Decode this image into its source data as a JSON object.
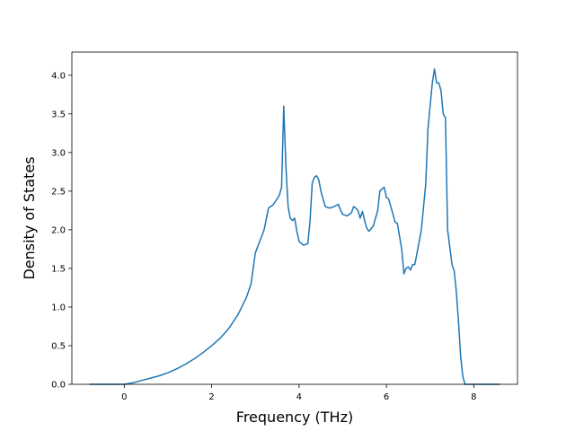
{
  "chart_data": {
    "type": "line",
    "title": "",
    "xlabel": "Frequency (THz)",
    "ylabel": "Density of States",
    "xlim": [
      -1.2,
      9.0
    ],
    "ylim": [
      0,
      4.3
    ],
    "xticks": [
      0,
      2,
      4,
      6,
      8
    ],
    "yticks": [
      0.0,
      0.5,
      1.0,
      1.5,
      2.0,
      2.5,
      3.0,
      3.5,
      4.0
    ],
    "xtick_labels": [
      "0",
      "2",
      "4",
      "6",
      "8"
    ],
    "ytick_labels": [
      "0.0",
      "0.5",
      "1.0",
      "1.5",
      "2.0",
      "2.5",
      "3.0",
      "3.5",
      "4.0"
    ],
    "grid": false,
    "legend": "none",
    "line_color": "#1f77b4",
    "series": [
      {
        "x": [
          -0.8,
          -0.4,
          0.0,
          0.2,
          0.4,
          0.6,
          0.8,
          1.0,
          1.2,
          1.4,
          1.6,
          1.8,
          2.0,
          2.2,
          2.4,
          2.6,
          2.8,
          2.9,
          3.0,
          3.2,
          3.3,
          3.4,
          3.5,
          3.55,
          3.6,
          3.65,
          3.7,
          3.75,
          3.8,
          3.85,
          3.9,
          3.95,
          4.0,
          4.1,
          4.2,
          4.25,
          4.3,
          4.35,
          4.4,
          4.45,
          4.5,
          4.6,
          4.7,
          4.8,
          4.9,
          4.95,
          5.0,
          5.1,
          5.2,
          5.25,
          5.3,
          5.35,
          5.4,
          5.45,
          5.5,
          5.55,
          5.6,
          5.7,
          5.8,
          5.85,
          5.9,
          5.95,
          6.0,
          6.05,
          6.1,
          6.2,
          6.25,
          6.35,
          6.4,
          6.45,
          6.5,
          6.55,
          6.6,
          6.65,
          6.7,
          6.8,
          6.9,
          6.95,
          7.0,
          7.05,
          7.1,
          7.15,
          7.2,
          7.25,
          7.3,
          7.35,
          7.4,
          7.5,
          7.55,
          7.6,
          7.65,
          7.7,
          7.75,
          7.8,
          8.0,
          8.3,
          8.6
        ],
        "values": [
          0.0,
          0.0,
          0.0,
          0.02,
          0.05,
          0.08,
          0.11,
          0.15,
          0.2,
          0.26,
          0.33,
          0.41,
          0.5,
          0.6,
          0.73,
          0.9,
          1.13,
          1.3,
          1.7,
          2.0,
          2.28,
          2.32,
          2.4,
          2.45,
          2.55,
          3.6,
          2.8,
          2.3,
          2.15,
          2.12,
          2.15,
          1.98,
          1.85,
          1.8,
          1.82,
          2.1,
          2.6,
          2.68,
          2.7,
          2.65,
          2.5,
          2.3,
          2.28,
          2.3,
          2.33,
          2.25,
          2.2,
          2.18,
          2.22,
          2.3,
          2.28,
          2.25,
          2.15,
          2.24,
          2.12,
          2.02,
          1.98,
          2.05,
          2.25,
          2.5,
          2.53,
          2.55,
          2.42,
          2.4,
          2.3,
          2.1,
          2.08,
          1.75,
          1.43,
          1.5,
          1.52,
          1.48,
          1.55,
          1.55,
          1.7,
          2.0,
          2.6,
          3.3,
          3.6,
          3.9,
          4.08,
          3.9,
          3.9,
          3.8,
          3.5,
          3.45,
          2.0,
          1.55,
          1.47,
          1.2,
          0.8,
          0.35,
          0.1,
          0.0,
          0.0,
          0.0,
          0.0
        ]
      }
    ]
  }
}
